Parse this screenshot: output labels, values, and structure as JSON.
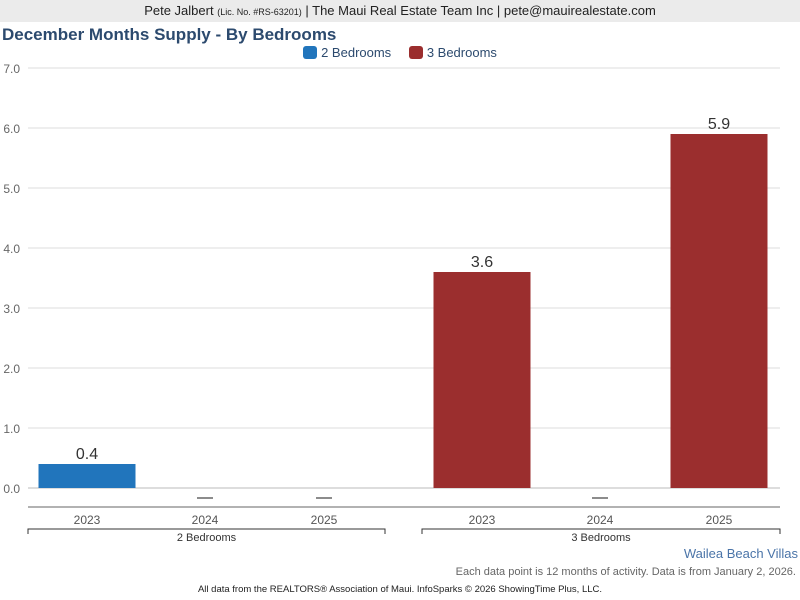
{
  "header": {
    "name": "Pete Jalbert",
    "license": "(Lic. No. #RS-63201)",
    "rest": "| The Maui Real Estate Team Inc | pete@mauirealestate.com"
  },
  "chart_data": {
    "type": "bar",
    "title": "December Months Supply - By Bedrooms",
    "ylim": [
      0,
      7
    ],
    "yticks": [
      "0.0",
      "1.0",
      "2.0",
      "3.0",
      "4.0",
      "5.0",
      "6.0",
      "7.0"
    ],
    "grid": true,
    "legend_placement": "top",
    "categories": [
      "2023",
      "2024",
      "2025"
    ],
    "series": [
      {
        "name": "2 Bedrooms",
        "color": "#2175bc",
        "values": [
          0.4,
          null,
          null
        ],
        "labels": [
          "0.4",
          "",
          ""
        ]
      },
      {
        "name": "3 Bedrooms",
        "color": "#9b2e2e",
        "values": [
          3.6,
          null,
          5.9
        ],
        "labels": [
          "3.6",
          "",
          "5.9"
        ]
      }
    ]
  },
  "area_name": "Wailea Beach Villas",
  "note": "Each data point is 12 months of activity. Data is from January 2, 2026.",
  "footer": "All data from the REALTORS® Association of Maui. InfoSparks © 2026 ShowingTime Plus, LLC."
}
